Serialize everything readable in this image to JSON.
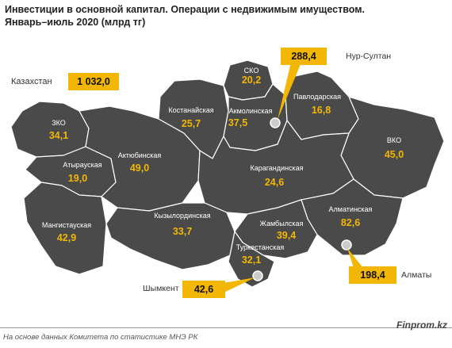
{
  "title": {
    "line1": "Инвестиции в основной капитал. Операции с недвижимым имуществом.",
    "line2": "Январь–июль 2020 (млрд тг)"
  },
  "total": {
    "label": "Казахстан",
    "value": "1 032,0"
  },
  "cities": {
    "nursultan": {
      "label": "Нур-Султан",
      "value": "288,4"
    },
    "almaty": {
      "label": "Алматы",
      "value": "198,4"
    },
    "shymkent": {
      "label": "Шымкент",
      "value": "42,6"
    }
  },
  "regions": {
    "zko": {
      "name": "ЗКО",
      "value": "34,1"
    },
    "atyrau": {
      "name": "Атырауская",
      "value": "19,0"
    },
    "mangistau": {
      "name": "Мангистауская",
      "value": "42,9"
    },
    "aktobe": {
      "name": "Актюбинская",
      "value": "49,0"
    },
    "kostanay": {
      "name": "Костанайская",
      "value": "25,7"
    },
    "sko": {
      "name": "СКО",
      "value": "20,2"
    },
    "akmola": {
      "name": "Акмолинская",
      "value": "37,5"
    },
    "pavlodar": {
      "name": "Павлодарская",
      "value": "16,8"
    },
    "vko": {
      "name": "ВКО",
      "value": "45,0"
    },
    "karaganda": {
      "name": "Карагандинская",
      "value": "24,6"
    },
    "kyzylorda": {
      "name": "Кызылординская",
      "value": "33,7"
    },
    "zhambyl": {
      "name": "Жамбылская",
      "value": "39,4"
    },
    "almatyobl": {
      "name": "Алматинская",
      "value": "82,6"
    },
    "turkestan": {
      "name": "Туркестанская",
      "value": "32,1"
    }
  },
  "colors": {
    "region_fill": "#4a4a4a",
    "border": "#ffffff",
    "accent": "#f2b705"
  },
  "footer": {
    "source": "На основе данных  Комитета по статистике МНЭ РК",
    "brand": "Finprom.kz"
  }
}
